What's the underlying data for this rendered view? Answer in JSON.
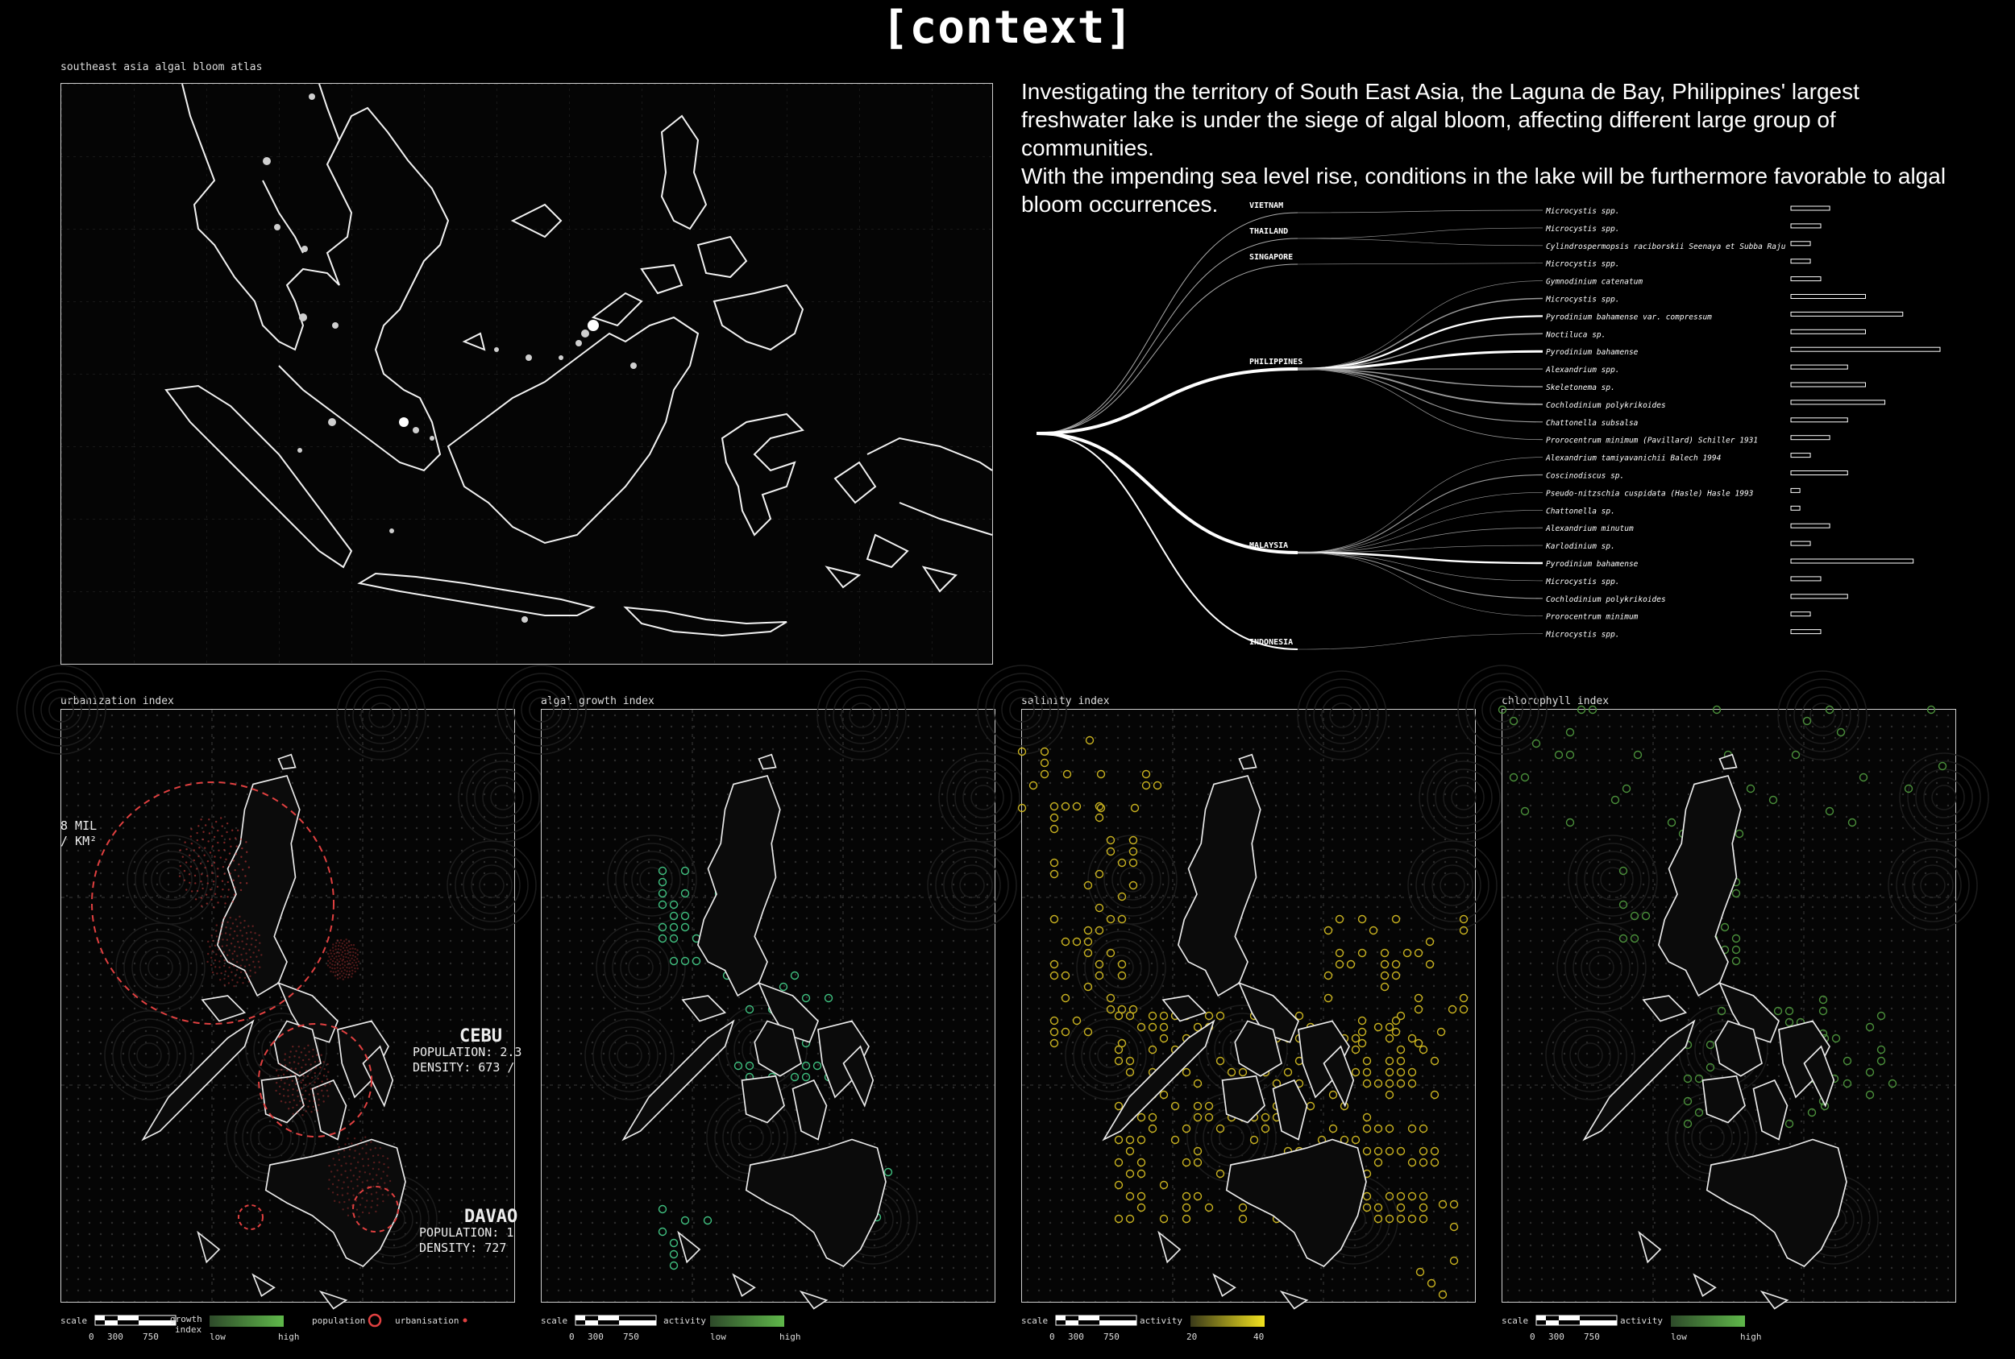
{
  "title": "[context]",
  "atlas": {
    "label": "southeast asia algal bloom atlas"
  },
  "intro": {
    "p1": "Investigating the territory of South East Asia, the Laguna de Bay, Philippines' largest freshwater lake is under the siege of algal bloom, affecting different large group of communities.",
    "p2": "With the impending sea level rise, conditions in the lake will be furthermore favorable to algal bloom occurrences."
  },
  "tree": {
    "countries": [
      "VIETNAM",
      "THAILAND",
      "SINGAPORE",
      "PHILIPPINES",
      "MALAYSIA",
      "INDONESIA"
    ],
    "species": [
      {
        "name": "Microcystis spp.",
        "country": "VIETNAM",
        "value": 0.26
      },
      {
        "name": "Microcystis spp.",
        "country": "THAILAND",
        "value": 0.2
      },
      {
        "name": "Cylindrospermopsis raciborskii Seenaya et Subba Raju",
        "country": "THAILAND",
        "value": 0.13
      },
      {
        "name": "Microcystis spp.",
        "country": "SINGAPORE",
        "value": 0.13
      },
      {
        "name": "Gymnodinium catenatum",
        "country": "PHILIPPINES",
        "value": 0.2
      },
      {
        "name": "Microcystis spp.",
        "country": "PHILIPPINES",
        "value": 0.5
      },
      {
        "name": "Pyrodinium bahamense var. compressum",
        "country": "PHILIPPINES",
        "value": 0.75
      },
      {
        "name": "Noctiluca sp.",
        "country": "PHILIPPINES",
        "value": 0.5
      },
      {
        "name": "Pyrodinium bahamense",
        "country": "PHILIPPINES",
        "value": 1.0
      },
      {
        "name": "Alexandrium spp.",
        "country": "PHILIPPINES",
        "value": 0.38
      },
      {
        "name": "Skeletonema sp.",
        "country": "PHILIPPINES",
        "value": 0.5
      },
      {
        "name": "Cochlodinium polykrikoides",
        "country": "PHILIPPINES",
        "value": 0.63
      },
      {
        "name": "Chattonella subsalsa",
        "country": "PHILIPPINES",
        "value": 0.38
      },
      {
        "name": "Prorocentrum minimum (Pavillard) Schiller 1931",
        "country": "PHILIPPINES",
        "value": 0.26
      },
      {
        "name": "Alexandrium tamiyavanichii Balech 1994",
        "country": "MALAYSIA",
        "value": 0.13
      },
      {
        "name": "Coscinodiscus sp.",
        "country": "MALAYSIA",
        "value": 0.38
      },
      {
        "name": "Pseudo-nitzschia cuspidata (Hasle) Hasle 1993",
        "country": "MALAYSIA",
        "value": 0.06
      },
      {
        "name": "Chattonella sp.",
        "country": "MALAYSIA",
        "value": 0.06
      },
      {
        "name": "Alexandrium minutum",
        "country": "MALAYSIA",
        "value": 0.26
      },
      {
        "name": "Karlodinium sp.",
        "country": "MALAYSIA",
        "value": 0.13
      },
      {
        "name": "Pyrodinium bahamense",
        "country": "MALAYSIA",
        "value": 0.82
      },
      {
        "name": "Microcystis spp.",
        "country": "MALAYSIA",
        "value": 0.2
      },
      {
        "name": "Cochlodinium polykrikoides",
        "country": "MALAYSIA",
        "value": 0.38
      },
      {
        "name": "Prorocentrum minimum",
        "country": "MALAYSIA",
        "value": 0.13
      },
      {
        "name": "Microcystis spp.",
        "country": "INDONESIA",
        "value": 0.2
      }
    ]
  },
  "panels": {
    "urbanization": {
      "label": "urbanization index",
      "callouts": {
        "manila": {
          "line1": "8 MIL",
          "line2": "/ KM²"
        },
        "cebu": {
          "city": "CEBU",
          "line1": "POPULATION: 2.3",
          "line2": "DENSITY: 673 /"
        },
        "davao": {
          "city": "DAVAO",
          "line1": "POPULATION: 1",
          "line2": "DENSITY: 727"
        }
      },
      "legend": {
        "scale": "scale",
        "ticks": [
          "0",
          "300",
          "750"
        ],
        "growth": "growth",
        "index": "index",
        "low": "low",
        "high": "high",
        "population": "population",
        "urbanisation": "urbanisation"
      },
      "colors": {
        "gradient_from": "#2e4a2a",
        "gradient_to": "#5fb84a",
        "ring": "#e04040"
      }
    },
    "algal": {
      "label": "algal growth index",
      "legend": {
        "scale": "scale",
        "ticks": [
          "0",
          "300",
          "750"
        ],
        "activity": "activity",
        "low": "low",
        "high": "high"
      },
      "colors": {
        "gradient_from": "#2e4a2a",
        "gradient_to": "#5fb84a",
        "marker": "#3fbf7f"
      }
    },
    "salinity": {
      "label": "salinity index",
      "legend": {
        "scale": "scale",
        "ticks": [
          "0",
          "300",
          "750"
        ],
        "activity": "activity",
        "low": "20",
        "high": "40"
      },
      "colors": {
        "gradient_from": "#3a3a1a",
        "gradient_to": "#f2e21e",
        "marker": "#c9b21f"
      }
    },
    "chlorophyll": {
      "label": "chlorophyll index",
      "legend": {
        "scale": "scale",
        "ticks": [
          "0",
          "300",
          "750"
        ],
        "activity": "activity",
        "low": "low",
        "high": "high"
      },
      "colors": {
        "gradient_from": "#2e4a2a",
        "gradient_to": "#5fb84a",
        "marker": "#4a8f3a"
      }
    }
  }
}
